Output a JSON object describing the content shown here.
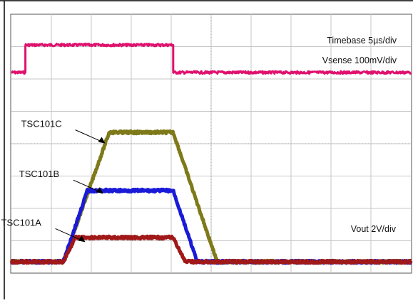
{
  "chart_data": {
    "type": "line",
    "title": "",
    "xlabel": "",
    "ylabel": "",
    "grid": true,
    "xlim": [
      0,
      10
    ],
    "ylim": [
      0,
      8
    ],
    "annotations": {
      "timebase": "Timebase 5µs/div",
      "vsense": "Vsense 100mV/div",
      "vout": "Vout 2V/div"
    },
    "series": [
      {
        "name": "",
        "color": "#e0116e",
        "x": [
          0,
          0.35,
          0.35,
          4.05,
          4.05,
          10
        ],
        "values": [
          6.2,
          6.2,
          7.05,
          7.05,
          6.2,
          6.2
        ]
      },
      {
        "name": "TSC101C",
        "color": "#7e7a1a",
        "x": [
          0,
          1.3,
          2.45,
          4.05,
          5.15,
          10
        ],
        "values": [
          0.35,
          0.35,
          4.35,
          4.35,
          0.35,
          0.35
        ]
      },
      {
        "name": "TSC101B",
        "color": "#1a1ad8",
        "x": [
          0,
          1.3,
          1.9,
          4.05,
          4.65,
          10
        ],
        "values": [
          0.35,
          0.35,
          2.55,
          2.55,
          0.35,
          0.35
        ]
      },
      {
        "name": "TSC101A",
        "color": "#a01818",
        "x": [
          0,
          1.3,
          1.6,
          4.05,
          4.35,
          10
        ],
        "values": [
          0.35,
          0.35,
          1.1,
          1.1,
          0.35,
          0.35
        ]
      }
    ],
    "labels": [
      {
        "text": "TSC101C",
        "series": "TSC101C",
        "x": 2.35,
        "y": 4.25
      },
      {
        "text": "TSC101B",
        "series": "TSC101B",
        "x": 2.3,
        "y": 2.7
      },
      {
        "text": "TSC101A",
        "series": "TSC101A",
        "x": 1.85,
        "y": 1.2
      }
    ]
  }
}
